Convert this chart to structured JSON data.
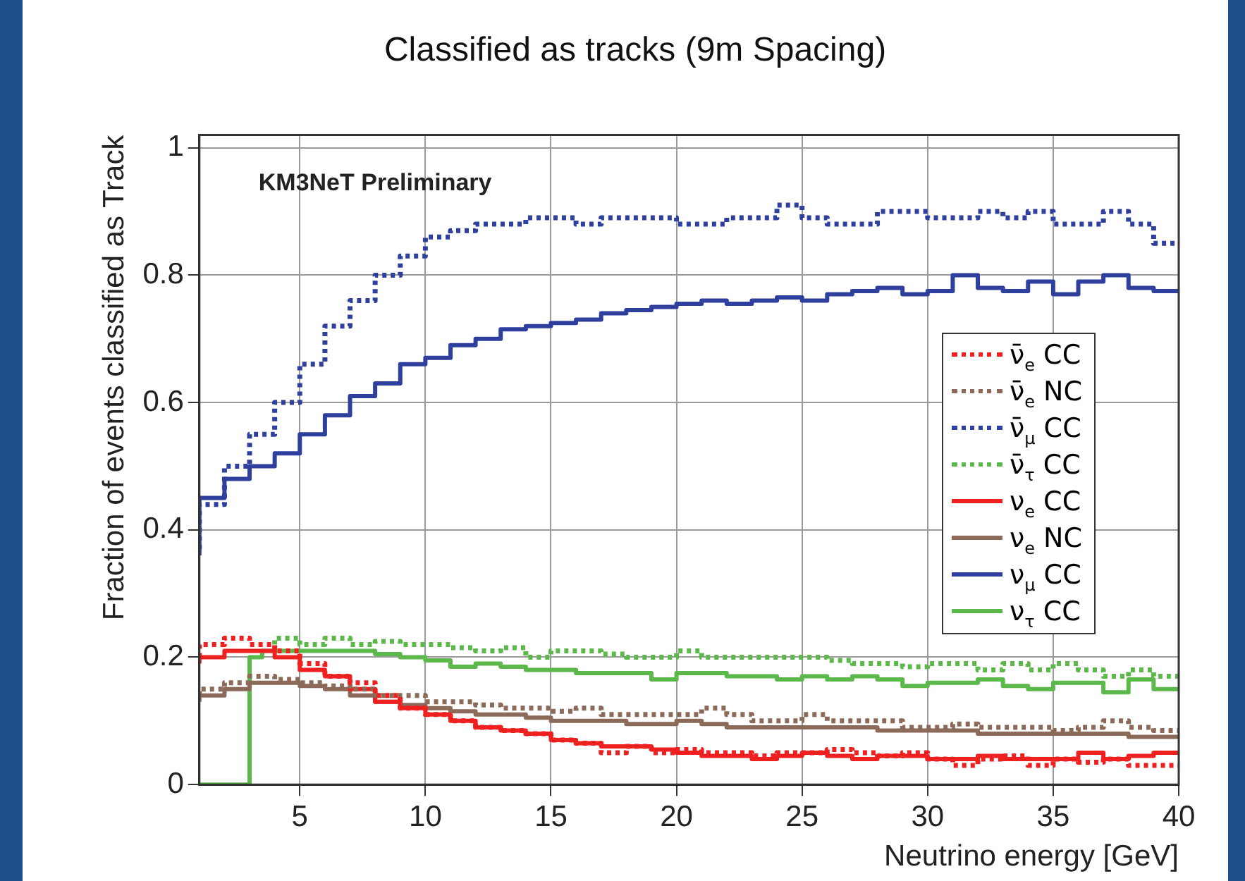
{
  "chart_data": {
    "type": "step",
    "title": "Classified as tracks (9m Spacing)",
    "xlabel": "Neutrino energy [GeV]",
    "ylabel": "Fraction of events classified as Track",
    "annotations": [
      "KM3NeT Preliminary"
    ],
    "x": [
      1,
      2,
      3,
      4,
      5,
      6,
      7,
      8,
      9,
      10,
      11,
      12,
      13,
      14,
      15,
      16,
      17,
      18,
      19,
      20,
      21,
      22,
      23,
      24,
      25,
      26,
      27,
      28,
      29,
      30,
      31,
      32,
      33,
      34,
      35,
      36,
      37,
      38,
      39,
      40
    ],
    "xlim": [
      1,
      40
    ],
    "ylim": [
      0,
      1.02
    ],
    "xticks": [
      5,
      10,
      15,
      20,
      25,
      30,
      35,
      40
    ],
    "yticks": [
      0,
      {
        "value": 0.2,
        "label": "0.2"
      },
      {
        "value": 0.4,
        "label": "0.4"
      },
      {
        "value": 0.6,
        "label": "0.6"
      },
      {
        "value": 0.8,
        "label": "0.8"
      },
      1
    ],
    "grid": true,
    "legend": "right",
    "series": [
      {
        "name": "ν̄$_{e}$ CC",
        "color": "#ee2020",
        "line_style": "dotted",
        "values": [
          0.2,
          0.22,
          0.23,
          0.22,
          0.21,
          0.19,
          0.17,
          0.16,
          0.14,
          0.12,
          0.11,
          0.1,
          0.09,
          0.085,
          0.08,
          0.07,
          0.065,
          0.05,
          0.06,
          0.05,
          0.055,
          0.05,
          0.05,
          0.045,
          0.05,
          0.05,
          0.055,
          0.05,
          0.045,
          0.05,
          0.04,
          0.03,
          0.04,
          0.045,
          0.03,
          0.04,
          0.035,
          0.04,
          0.03,
          0.03
        ]
      },
      {
        "name": "ν̄$_{e}$ NC",
        "color": "#8b6a5a",
        "line_style": "dotted",
        "values": [
          0.14,
          0.15,
          0.16,
          0.17,
          0.165,
          0.16,
          0.155,
          0.15,
          0.14,
          0.14,
          0.13,
          0.13,
          0.125,
          0.12,
          0.12,
          0.115,
          0.12,
          0.11,
          0.11,
          0.11,
          0.11,
          0.12,
          0.11,
          0.1,
          0.1,
          0.11,
          0.1,
          0.1,
          0.1,
          0.09,
          0.09,
          0.095,
          0.09,
          0.09,
          0.09,
          0.085,
          0.09,
          0.1,
          0.09,
          0.085
        ]
      },
      {
        "name": "ν̄$_{μ}$ CC",
        "color": "#2e3f9e",
        "line_style": "dotted",
        "values": [
          0.37,
          0.44,
          0.5,
          0.55,
          0.6,
          0.66,
          0.72,
          0.76,
          0.8,
          0.83,
          0.86,
          0.87,
          0.88,
          0.88,
          0.89,
          0.89,
          0.88,
          0.89,
          0.89,
          0.89,
          0.88,
          0.88,
          0.89,
          0.89,
          0.91,
          0.89,
          0.88,
          0.88,
          0.9,
          0.9,
          0.89,
          0.89,
          0.9,
          0.89,
          0.9,
          0.88,
          0.88,
          0.9,
          0.88,
          0.85
        ]
      },
      {
        "name": "ν̄$_{τ}$ CC",
        "color": "#5cb84a",
        "line_style": "dotted",
        "x": [
          4,
          5,
          6,
          7,
          8,
          9,
          10,
          11,
          12,
          13,
          14,
          15,
          16,
          17,
          18,
          19,
          20,
          21,
          22,
          23,
          24,
          25,
          26,
          27,
          28,
          29,
          30,
          31,
          32,
          33,
          34,
          35,
          36,
          37,
          38,
          39,
          40
        ],
        "values": [
          0.22,
          0.23,
          0.22,
          0.23,
          0.22,
          0.225,
          0.22,
          0.22,
          0.215,
          0.21,
          0.215,
          0.2,
          0.21,
          0.21,
          0.205,
          0.2,
          0.2,
          0.21,
          0.2,
          0.2,
          0.2,
          0.2,
          0.2,
          0.195,
          0.19,
          0.19,
          0.185,
          0.19,
          0.19,
          0.18,
          0.19,
          0.18,
          0.19,
          0.18,
          0.17,
          0.18,
          0.17
        ]
      },
      {
        "name": "ν$_{e}$ CC",
        "color": "#ee2020",
        "line_style": "solid",
        "values": [
          0.19,
          0.2,
          0.21,
          0.21,
          0.2,
          0.18,
          0.17,
          0.15,
          0.13,
          0.12,
          0.11,
          0.1,
          0.09,
          0.085,
          0.08,
          0.07,
          0.065,
          0.06,
          0.06,
          0.055,
          0.05,
          0.045,
          0.045,
          0.04,
          0.045,
          0.05,
          0.045,
          0.04,
          0.045,
          0.045,
          0.04,
          0.04,
          0.045,
          0.04,
          0.04,
          0.04,
          0.05,
          0.04,
          0.045,
          0.05
        ]
      },
      {
        "name": "ν$_{e}$ NC",
        "color": "#8b6a5a",
        "line_style": "solid",
        "values": [
          0.13,
          0.14,
          0.15,
          0.16,
          0.16,
          0.155,
          0.15,
          0.14,
          0.13,
          0.125,
          0.12,
          0.115,
          0.11,
          0.11,
          0.105,
          0.1,
          0.1,
          0.1,
          0.095,
          0.095,
          0.1,
          0.095,
          0.09,
          0.09,
          0.09,
          0.09,
          0.09,
          0.09,
          0.085,
          0.085,
          0.085,
          0.085,
          0.08,
          0.08,
          0.08,
          0.08,
          0.08,
          0.08,
          0.075,
          0.075
        ]
      },
      {
        "name": "ν$_{μ}$ CC",
        "color": "#2e3f9e",
        "line_style": "solid",
        "values": [
          0.36,
          0.45,
          0.48,
          0.5,
          0.52,
          0.55,
          0.58,
          0.61,
          0.63,
          0.66,
          0.67,
          0.69,
          0.7,
          0.715,
          0.72,
          0.725,
          0.73,
          0.74,
          0.745,
          0.75,
          0.755,
          0.76,
          0.755,
          0.76,
          0.765,
          0.76,
          0.77,
          0.775,
          0.78,
          0.77,
          0.775,
          0.8,
          0.78,
          0.775,
          0.79,
          0.77,
          0.79,
          0.8,
          0.78,
          0.775
        ]
      },
      {
        "name": "ν$_{τ}$ CC",
        "color": "#5cb84a",
        "line_style": "solid",
        "x": [
          1,
          2,
          3,
          3.5,
          4,
          5,
          6,
          7,
          8,
          9,
          10,
          11,
          12,
          13,
          14,
          15,
          16,
          17,
          18,
          19,
          20,
          21,
          22,
          23,
          24,
          25,
          26,
          27,
          28,
          29,
          30,
          31,
          32,
          33,
          34,
          35,
          36,
          37,
          38,
          39,
          40
        ],
        "values": [
          0,
          0,
          0,
          0.2,
          0.21,
          0.21,
          0.21,
          0.21,
          0.21,
          0.205,
          0.2,
          0.195,
          0.185,
          0.19,
          0.185,
          0.18,
          0.18,
          0.175,
          0.175,
          0.175,
          0.165,
          0.175,
          0.175,
          0.17,
          0.17,
          0.165,
          0.17,
          0.165,
          0.17,
          0.165,
          0.155,
          0.16,
          0.16,
          0.165,
          0.155,
          0.15,
          0.16,
          0.16,
          0.145,
          0.165,
          0.15
        ]
      }
    ]
  }
}
